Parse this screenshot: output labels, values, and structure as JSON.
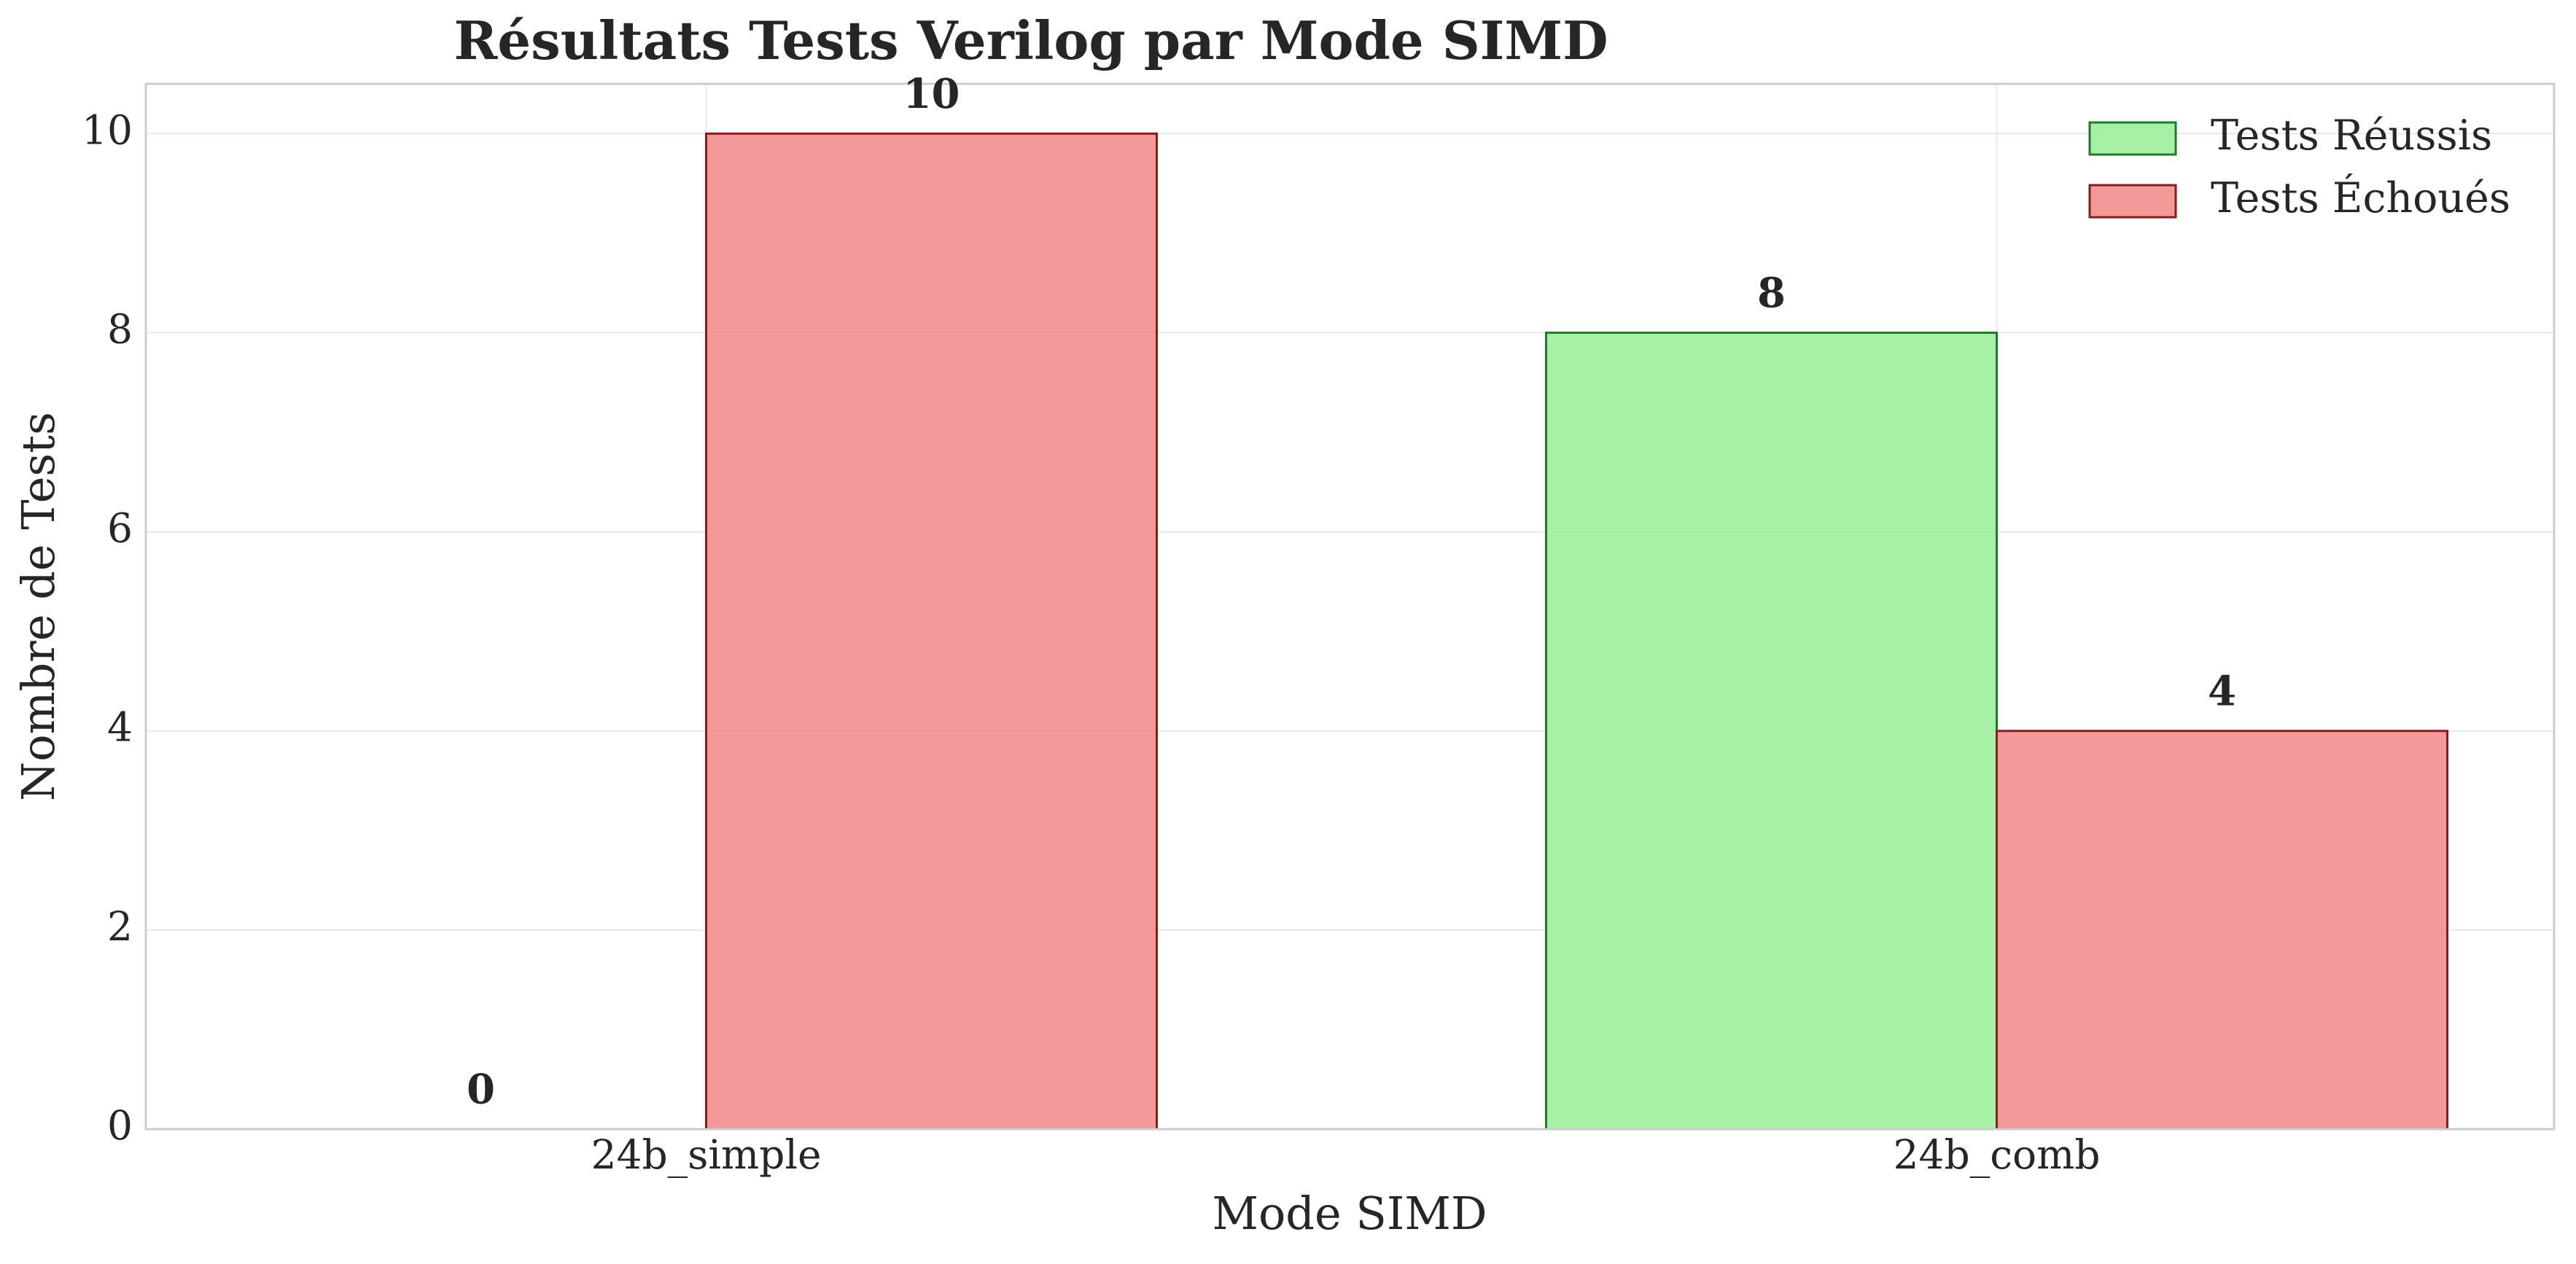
{
  "chart_data": {
    "type": "bar",
    "title": "Résultats Tests Verilog par Mode SIMD",
    "xlabel": "Mode SIMD",
    "ylabel": "Nombre de Tests",
    "categories": [
      "24b_simple",
      "24b_comb"
    ],
    "series": [
      {
        "name": "Tests Réussis",
        "values": [
          0,
          8
        ],
        "color": "#90EE90",
        "edge": "#1f7a2b"
      },
      {
        "name": "Tests Échoués",
        "values": [
          10,
          4
        ],
        "color": "#F08080",
        "edge": "#8b1a1a"
      }
    ],
    "ylim": [
      0,
      10.5
    ],
    "yticks": [
      "0",
      "2",
      "4",
      "6",
      "8",
      "10"
    ],
    "grid": true,
    "legend": "top-right",
    "data_labels": true
  }
}
